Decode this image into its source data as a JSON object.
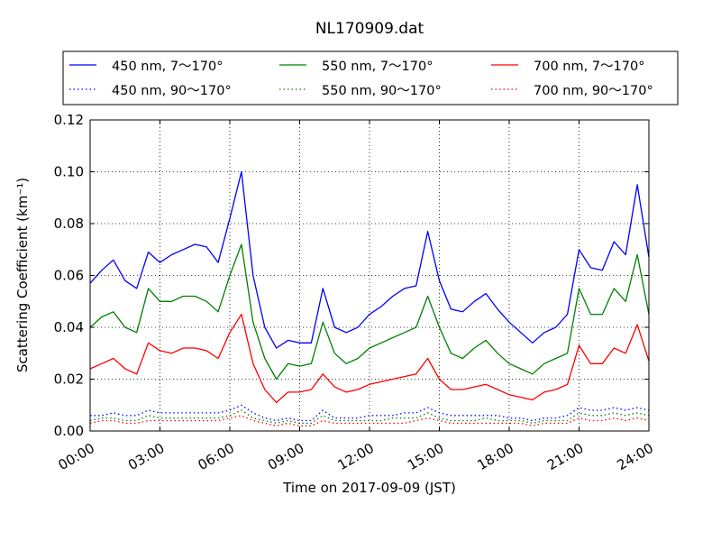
{
  "chart_data": {
    "type": "line",
    "title": "NL170909.dat",
    "xlabel": "Time on 2017-09-09 (JST)",
    "ylabel": "Scattering Coefficient (km⁻¹)",
    "xlim": [
      "00:00",
      "24:00"
    ],
    "ylim": [
      0,
      0.12
    ],
    "x_ticks": [
      "00:00",
      "03:00",
      "06:00",
      "09:00",
      "12:00",
      "15:00",
      "18:00",
      "21:00",
      "24:00"
    ],
    "y_ticks": [
      "0.00",
      "0.02",
      "0.04",
      "0.06",
      "0.08",
      "0.10",
      "0.12"
    ],
    "grid": true,
    "legend_position": "top",
    "x": [
      "00:00",
      "00:30",
      "01:00",
      "01:30",
      "02:00",
      "02:30",
      "03:00",
      "03:30",
      "04:00",
      "04:30",
      "05:00",
      "05:30",
      "06:00",
      "06:30",
      "07:00",
      "07:30",
      "08:00",
      "08:30",
      "09:00",
      "09:30",
      "10:00",
      "10:30",
      "11:00",
      "11:30",
      "12:00",
      "12:30",
      "13:00",
      "13:30",
      "14:00",
      "14:30",
      "15:00",
      "15:30",
      "16:00",
      "16:30",
      "17:00",
      "17:30",
      "18:00",
      "18:30",
      "19:00",
      "19:30",
      "20:00",
      "20:30",
      "21:00",
      "21:30",
      "22:00",
      "22:30",
      "23:00",
      "23:30",
      "24:00"
    ],
    "series": [
      {
        "name": "450 nm, 7～170°",
        "color": "#0000ff",
        "style": "solid",
        "values": [
          0.057,
          0.062,
          0.066,
          0.058,
          0.055,
          0.069,
          0.065,
          0.068,
          0.07,
          0.072,
          0.071,
          0.065,
          0.082,
          0.1,
          0.06,
          0.04,
          0.032,
          0.035,
          0.034,
          0.034,
          0.055,
          0.04,
          0.038,
          0.04,
          0.045,
          0.048,
          0.052,
          0.055,
          0.056,
          0.077,
          0.058,
          0.047,
          0.046,
          0.05,
          0.053,
          0.047,
          0.042,
          0.038,
          0.034,
          0.038,
          0.04,
          0.045,
          0.07,
          0.063,
          0.062,
          0.073,
          0.068,
          0.095,
          0.067
        ]
      },
      {
        "name": "450 nm, 90～170°",
        "color": "#0000ff",
        "style": "dotted",
        "values": [
          0.006,
          0.006,
          0.007,
          0.006,
          0.006,
          0.008,
          0.007,
          0.007,
          0.007,
          0.007,
          0.007,
          0.007,
          0.008,
          0.01,
          0.007,
          0.005,
          0.004,
          0.005,
          0.004,
          0.004,
          0.008,
          0.005,
          0.005,
          0.005,
          0.006,
          0.006,
          0.006,
          0.007,
          0.007,
          0.009,
          0.007,
          0.006,
          0.006,
          0.006,
          0.006,
          0.006,
          0.005,
          0.005,
          0.004,
          0.005,
          0.005,
          0.006,
          0.009,
          0.008,
          0.008,
          0.009,
          0.008,
          0.009,
          0.008
        ]
      },
      {
        "name": "550 nm, 7～170°",
        "color": "#008000",
        "style": "solid",
        "values": [
          0.04,
          0.044,
          0.046,
          0.04,
          0.038,
          0.055,
          0.05,
          0.05,
          0.052,
          0.052,
          0.05,
          0.046,
          0.06,
          0.072,
          0.042,
          0.028,
          0.02,
          0.026,
          0.025,
          0.026,
          0.042,
          0.03,
          0.026,
          0.028,
          0.032,
          0.034,
          0.036,
          0.038,
          0.04,
          0.052,
          0.04,
          0.03,
          0.028,
          0.032,
          0.035,
          0.03,
          0.026,
          0.024,
          0.022,
          0.026,
          0.028,
          0.03,
          0.055,
          0.045,
          0.045,
          0.055,
          0.05,
          0.068,
          0.045
        ]
      },
      {
        "name": "550 nm, 90～170°",
        "color": "#008000",
        "style": "dotted",
        "values": [
          0.004,
          0.005,
          0.005,
          0.004,
          0.004,
          0.006,
          0.005,
          0.005,
          0.005,
          0.005,
          0.005,
          0.005,
          0.006,
          0.008,
          0.005,
          0.004,
          0.003,
          0.004,
          0.003,
          0.003,
          0.006,
          0.004,
          0.004,
          0.004,
          0.004,
          0.004,
          0.005,
          0.005,
          0.005,
          0.007,
          0.005,
          0.004,
          0.004,
          0.004,
          0.005,
          0.004,
          0.004,
          0.004,
          0.003,
          0.004,
          0.004,
          0.004,
          0.007,
          0.006,
          0.006,
          0.007,
          0.006,
          0.007,
          0.006
        ]
      },
      {
        "name": "700 nm, 7～170°",
        "color": "#ff0000",
        "style": "solid",
        "values": [
          0.024,
          0.026,
          0.028,
          0.024,
          0.022,
          0.034,
          0.031,
          0.03,
          0.032,
          0.032,
          0.031,
          0.028,
          0.038,
          0.045,
          0.026,
          0.016,
          0.011,
          0.015,
          0.015,
          0.016,
          0.022,
          0.017,
          0.015,
          0.016,
          0.018,
          0.019,
          0.02,
          0.021,
          0.022,
          0.028,
          0.02,
          0.016,
          0.016,
          0.017,
          0.018,
          0.016,
          0.014,
          0.013,
          0.012,
          0.015,
          0.016,
          0.018,
          0.033,
          0.026,
          0.026,
          0.032,
          0.03,
          0.041,
          0.027
        ]
      },
      {
        "name": "700 nm, 90～170°",
        "color": "#ff0000",
        "style": "dotted",
        "values": [
          0.003,
          0.004,
          0.004,
          0.003,
          0.003,
          0.004,
          0.004,
          0.004,
          0.004,
          0.004,
          0.004,
          0.004,
          0.005,
          0.006,
          0.004,
          0.003,
          0.002,
          0.003,
          0.002,
          0.002,
          0.004,
          0.003,
          0.003,
          0.003,
          0.003,
          0.003,
          0.003,
          0.003,
          0.004,
          0.005,
          0.004,
          0.003,
          0.003,
          0.003,
          0.003,
          0.003,
          0.003,
          0.003,
          0.002,
          0.003,
          0.003,
          0.003,
          0.005,
          0.004,
          0.004,
          0.005,
          0.004,
          0.005,
          0.004
        ]
      }
    ]
  }
}
